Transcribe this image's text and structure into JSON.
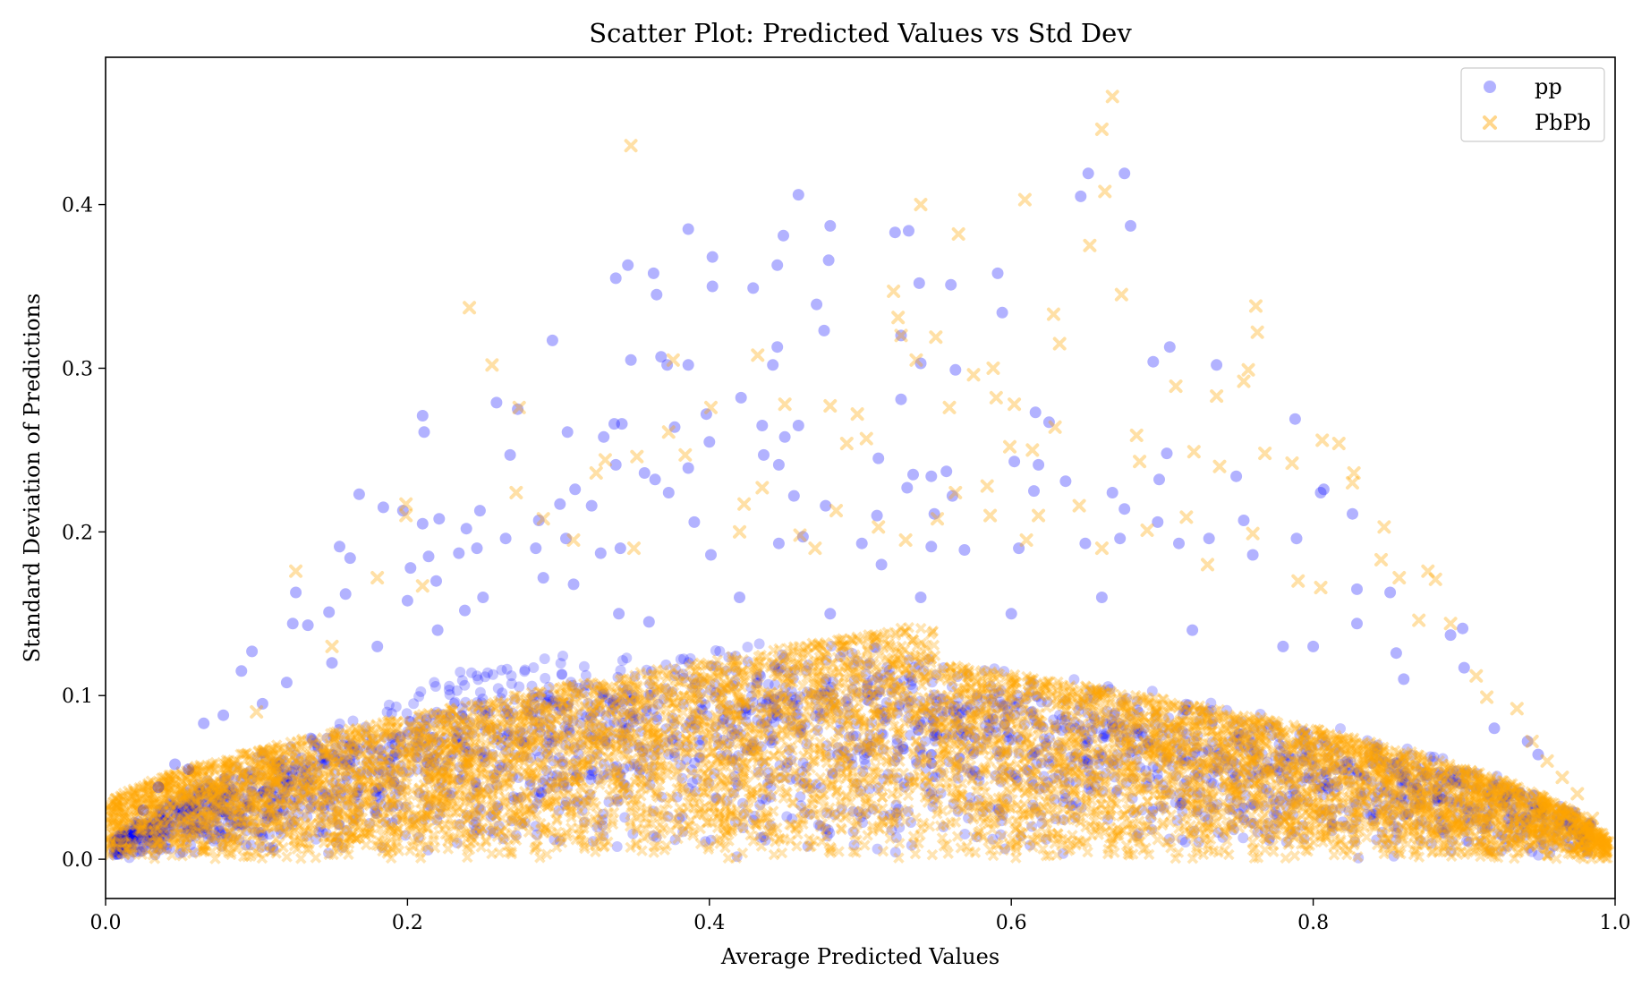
{
  "chart_data": {
    "type": "scatter",
    "title": "Scatter Plot: Predicted Values vs Std Dev",
    "xlabel": "Average Predicted Values",
    "ylabel": "Standard Deviation of Predictions",
    "xlim": [
      0.0,
      1.0
    ],
    "ylim": [
      -0.024,
      0.49
    ],
    "xticks": [
      0.0,
      0.2,
      0.4,
      0.6,
      0.8,
      1.0
    ],
    "xtick_labels": [
      "0.0",
      "0.2",
      "0.4",
      "0.6",
      "0.8",
      "1.0"
    ],
    "yticks": [
      0.0,
      0.1,
      0.2,
      0.3,
      0.4
    ],
    "ytick_labels": [
      "0.0",
      "0.1",
      "0.2",
      "0.3",
      "0.4"
    ],
    "legend_position": "top-right",
    "series": [
      {
        "name": "pp",
        "marker": "circle",
        "color": "#0000ff",
        "alpha": 0.3,
        "density_note": "dense band rising from (0,0) to about 0.09-0.12 near x=0.2-0.5, tapering to 0 at x=1",
        "points": [
          [
            0.346,
            0.363
          ],
          [
            0.338,
            0.355
          ],
          [
            0.363,
            0.358
          ],
          [
            0.365,
            0.345
          ],
          [
            0.386,
            0.385
          ],
          [
            0.402,
            0.368
          ],
          [
            0.402,
            0.35
          ],
          [
            0.429,
            0.349
          ],
          [
            0.445,
            0.363
          ],
          [
            0.449,
            0.381
          ],
          [
            0.459,
            0.406
          ],
          [
            0.471,
            0.339
          ],
          [
            0.476,
            0.323
          ],
          [
            0.479,
            0.366
          ],
          [
            0.48,
            0.387
          ],
          [
            0.523,
            0.383
          ],
          [
            0.532,
            0.384
          ],
          [
            0.539,
            0.352
          ],
          [
            0.56,
            0.351
          ],
          [
            0.591,
            0.358
          ],
          [
            0.594,
            0.334
          ],
          [
            0.646,
            0.405
          ],
          [
            0.651,
            0.419
          ],
          [
            0.675,
            0.419
          ],
          [
            0.679,
            0.387
          ],
          [
            0.296,
            0.317
          ],
          [
            0.21,
            0.271
          ],
          [
            0.211,
            0.261
          ],
          [
            0.259,
            0.279
          ],
          [
            0.273,
            0.275
          ],
          [
            0.268,
            0.247
          ],
          [
            0.348,
            0.305
          ],
          [
            0.368,
            0.307
          ],
          [
            0.372,
            0.302
          ],
          [
            0.386,
            0.302
          ],
          [
            0.398,
            0.272
          ],
          [
            0.445,
            0.313
          ],
          [
            0.442,
            0.302
          ],
          [
            0.421,
            0.282
          ],
          [
            0.527,
            0.32
          ],
          [
            0.527,
            0.281
          ],
          [
            0.54,
            0.303
          ],
          [
            0.563,
            0.299
          ],
          [
            0.705,
            0.313
          ],
          [
            0.694,
            0.304
          ],
          [
            0.736,
            0.302
          ],
          [
            0.788,
            0.269
          ],
          [
            0.616,
            0.273
          ],
          [
            0.625,
            0.267
          ],
          [
            0.618,
            0.241
          ],
          [
            0.602,
            0.243
          ],
          [
            0.306,
            0.261
          ],
          [
            0.33,
            0.258
          ],
          [
            0.337,
            0.266
          ],
          [
            0.342,
            0.266
          ],
          [
            0.338,
            0.241
          ],
          [
            0.357,
            0.236
          ],
          [
            0.377,
            0.264
          ],
          [
            0.386,
            0.239
          ],
          [
            0.4,
            0.255
          ],
          [
            0.435,
            0.265
          ],
          [
            0.436,
            0.247
          ],
          [
            0.45,
            0.258
          ],
          [
            0.459,
            0.265
          ],
          [
            0.446,
            0.241
          ],
          [
            0.512,
            0.245
          ],
          [
            0.535,
            0.235
          ],
          [
            0.547,
            0.234
          ],
          [
            0.557,
            0.237
          ],
          [
            0.703,
            0.248
          ],
          [
            0.698,
            0.232
          ],
          [
            0.749,
            0.234
          ],
          [
            0.805,
            0.224
          ],
          [
            0.807,
            0.226
          ],
          [
            0.168,
            0.223
          ],
          [
            0.184,
            0.215
          ],
          [
            0.197,
            0.213
          ],
          [
            0.21,
            0.205
          ],
          [
            0.221,
            0.208
          ],
          [
            0.239,
            0.202
          ],
          [
            0.248,
            0.213
          ],
          [
            0.287,
            0.207
          ],
          [
            0.301,
            0.217
          ],
          [
            0.311,
            0.226
          ],
          [
            0.322,
            0.216
          ],
          [
            0.364,
            0.232
          ],
          [
            0.373,
            0.224
          ],
          [
            0.39,
            0.206
          ],
          [
            0.456,
            0.222
          ],
          [
            0.477,
            0.216
          ],
          [
            0.511,
            0.21
          ],
          [
            0.531,
            0.227
          ],
          [
            0.549,
            0.211
          ],
          [
            0.561,
            0.222
          ],
          [
            0.615,
            0.225
          ],
          [
            0.636,
            0.231
          ],
          [
            0.667,
            0.224
          ],
          [
            0.675,
            0.214
          ],
          [
            0.697,
            0.206
          ],
          [
            0.731,
            0.196
          ],
          [
            0.754,
            0.207
          ],
          [
            0.789,
            0.196
          ],
          [
            0.826,
            0.211
          ],
          [
            0.155,
            0.191
          ],
          [
            0.162,
            0.184
          ],
          [
            0.202,
            0.178
          ],
          [
            0.214,
            0.185
          ],
          [
            0.234,
            0.187
          ],
          [
            0.246,
            0.19
          ],
          [
            0.265,
            0.196
          ],
          [
            0.285,
            0.19
          ],
          [
            0.305,
            0.196
          ],
          [
            0.328,
            0.187
          ],
          [
            0.341,
            0.19
          ],
          [
            0.401,
            0.186
          ],
          [
            0.446,
            0.193
          ],
          [
            0.462,
            0.197
          ],
          [
            0.501,
            0.193
          ],
          [
            0.514,
            0.18
          ],
          [
            0.547,
            0.191
          ],
          [
            0.569,
            0.189
          ],
          [
            0.605,
            0.19
          ],
          [
            0.649,
            0.193
          ],
          [
            0.672,
            0.196
          ],
          [
            0.711,
            0.193
          ],
          [
            0.76,
            0.186
          ],
          [
            0.829,
            0.165
          ],
          [
            0.851,
            0.163
          ],
          [
            0.899,
            0.141
          ],
          [
            0.9,
            0.117
          ],
          [
            0.891,
            0.137
          ],
          [
            0.855,
            0.126
          ],
          [
            0.8,
            0.13
          ],
          [
            0.829,
            0.144
          ],
          [
            0.949,
            0.064
          ],
          [
            0.942,
            0.072
          ],
          [
            0.09,
            0.115
          ],
          [
            0.097,
            0.127
          ],
          [
            0.104,
            0.095
          ],
          [
            0.126,
            0.163
          ],
          [
            0.124,
            0.144
          ],
          [
            0.134,
            0.143
          ],
          [
            0.148,
            0.151
          ],
          [
            0.159,
            0.162
          ],
          [
            0.065,
            0.083
          ],
          [
            0.078,
            0.088
          ],
          [
            0.046,
            0.058
          ],
          [
            0.055,
            0.055
          ],
          [
            0.035,
            0.044
          ],
          [
            0.025,
            0.03
          ],
          [
            0.01,
            0.012
          ],
          [
            0.2,
            0.158
          ],
          [
            0.219,
            0.17
          ],
          [
            0.238,
            0.152
          ],
          [
            0.25,
            0.16
          ],
          [
            0.29,
            0.172
          ],
          [
            0.31,
            0.168
          ],
          [
            0.34,
            0.15
          ],
          [
            0.36,
            0.145
          ],
          [
            0.42,
            0.16
          ],
          [
            0.48,
            0.15
          ],
          [
            0.54,
            0.16
          ],
          [
            0.6,
            0.15
          ],
          [
            0.66,
            0.16
          ],
          [
            0.72,
            0.14
          ],
          [
            0.78,
            0.13
          ],
          [
            0.86,
            0.11
          ],
          [
            0.92,
            0.08
          ],
          [
            0.12,
            0.108
          ],
          [
            0.15,
            0.12
          ],
          [
            0.18,
            0.13
          ],
          [
            0.22,
            0.14
          ]
        ]
      },
      {
        "name": "PbPb",
        "marker": "x",
        "color": "#ffa500",
        "alpha": 0.35,
        "density_note": "very dense band from (0,0) rising to about 0.10-0.12 near x=0.5-0.7, falling to 0 at x=1",
        "points": [
          [
            0.348,
            0.436
          ],
          [
            0.667,
            0.466
          ],
          [
            0.66,
            0.446
          ],
          [
            0.662,
            0.408
          ],
          [
            0.652,
            0.375
          ],
          [
            0.609,
            0.403
          ],
          [
            0.54,
            0.4
          ],
          [
            0.565,
            0.382
          ],
          [
            0.522,
            0.347
          ],
          [
            0.525,
            0.331
          ],
          [
            0.527,
            0.32
          ],
          [
            0.537,
            0.305
          ],
          [
            0.55,
            0.319
          ],
          [
            0.575,
            0.296
          ],
          [
            0.498,
            0.272
          ],
          [
            0.504,
            0.257
          ],
          [
            0.491,
            0.254
          ],
          [
            0.48,
            0.277
          ],
          [
            0.45,
            0.278
          ],
          [
            0.432,
            0.308
          ],
          [
            0.376,
            0.305
          ],
          [
            0.401,
            0.276
          ],
          [
            0.241,
            0.337
          ],
          [
            0.256,
            0.302
          ],
          [
            0.274,
            0.276
          ],
          [
            0.272,
            0.224
          ],
          [
            0.199,
            0.217
          ],
          [
            0.199,
            0.21
          ],
          [
            0.18,
            0.172
          ],
          [
            0.21,
            0.167
          ],
          [
            0.126,
            0.176
          ],
          [
            0.628,
            0.333
          ],
          [
            0.632,
            0.315
          ],
          [
            0.673,
            0.345
          ],
          [
            0.757,
            0.299
          ],
          [
            0.762,
            0.338
          ],
          [
            0.763,
            0.322
          ],
          [
            0.754,
            0.292
          ],
          [
            0.709,
            0.289
          ],
          [
            0.683,
            0.259
          ],
          [
            0.685,
            0.243
          ],
          [
            0.721,
            0.249
          ],
          [
            0.736,
            0.283
          ],
          [
            0.738,
            0.24
          ],
          [
            0.768,
            0.248
          ],
          [
            0.786,
            0.242
          ],
          [
            0.806,
            0.256
          ],
          [
            0.817,
            0.254
          ],
          [
            0.827,
            0.236
          ],
          [
            0.826,
            0.23
          ],
          [
            0.588,
            0.3
          ],
          [
            0.59,
            0.282
          ],
          [
            0.599,
            0.252
          ],
          [
            0.602,
            0.278
          ],
          [
            0.614,
            0.25
          ],
          [
            0.629,
            0.264
          ],
          [
            0.584,
            0.228
          ],
          [
            0.559,
            0.276
          ],
          [
            0.563,
            0.224
          ],
          [
            0.331,
            0.244
          ],
          [
            0.325,
            0.236
          ],
          [
            0.352,
            0.246
          ],
          [
            0.373,
            0.261
          ],
          [
            0.384,
            0.247
          ],
          [
            0.423,
            0.217
          ],
          [
            0.435,
            0.227
          ],
          [
            0.46,
            0.198
          ],
          [
            0.484,
            0.213
          ],
          [
            0.512,
            0.203
          ],
          [
            0.551,
            0.208
          ],
          [
            0.586,
            0.21
          ],
          [
            0.618,
            0.21
          ],
          [
            0.645,
            0.216
          ],
          [
            0.69,
            0.201
          ],
          [
            0.716,
            0.209
          ],
          [
            0.76,
            0.199
          ],
          [
            0.805,
            0.166
          ],
          [
            0.845,
            0.183
          ],
          [
            0.847,
            0.203
          ],
          [
            0.876,
            0.176
          ],
          [
            0.881,
            0.171
          ],
          [
            0.891,
            0.144
          ],
          [
            0.857,
            0.172
          ],
          [
            0.87,
            0.146
          ],
          [
            0.908,
            0.112
          ],
          [
            0.915,
            0.099
          ],
          [
            0.935,
            0.092
          ],
          [
            0.945,
            0.072
          ],
          [
            0.955,
            0.06
          ],
          [
            0.965,
            0.05
          ],
          [
            0.975,
            0.04
          ],
          [
            0.985,
            0.025
          ],
          [
            0.995,
            0.01
          ],
          [
            0.31,
            0.195
          ],
          [
            0.29,
            0.208
          ],
          [
            0.35,
            0.19
          ],
          [
            0.42,
            0.2
          ],
          [
            0.47,
            0.19
          ],
          [
            0.53,
            0.195
          ],
          [
            0.61,
            0.195
          ],
          [
            0.66,
            0.19
          ],
          [
            0.73,
            0.18
          ],
          [
            0.79,
            0.17
          ],
          [
            0.15,
            0.13
          ],
          [
            0.1,
            0.09
          ],
          [
            0.06,
            0.055
          ],
          [
            0.03,
            0.03
          ],
          [
            0.01,
            0.01
          ]
        ]
      }
    ]
  }
}
